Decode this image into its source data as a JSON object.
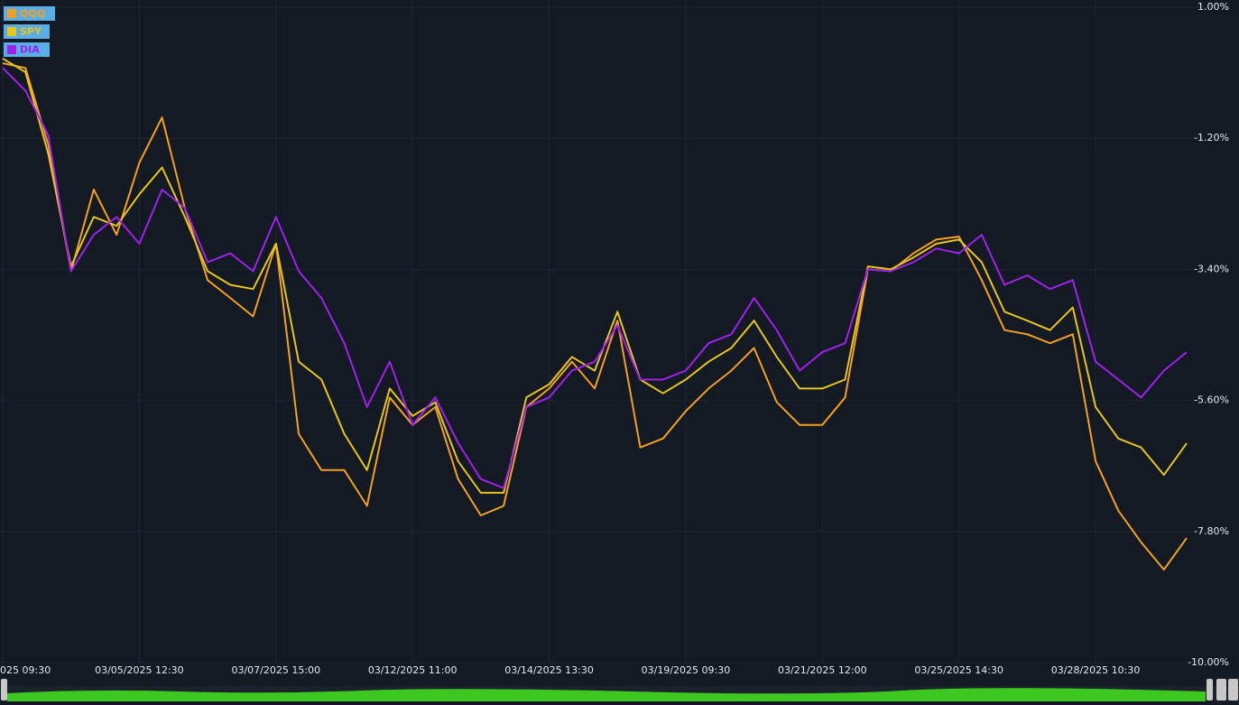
{
  "chart_data": {
    "type": "line",
    "categories": [
      "025 09:30",
      null,
      null,
      null,
      null,
      null,
      "03/05/2025 12:30",
      null,
      null,
      null,
      null,
      null,
      "03/07/2025 15:00",
      null,
      null,
      null,
      null,
      null,
      "03/12/2025 11:00",
      null,
      null,
      null,
      null,
      null,
      "03/14/2025 13:30",
      null,
      null,
      null,
      null,
      null,
      "03/19/2025 09:30",
      null,
      null,
      null,
      null,
      null,
      "03/21/2025 12:00",
      null,
      null,
      null,
      null,
      null,
      "03/25/2025 14:30",
      null,
      null,
      null,
      null,
      null,
      "03/28/2025 10:30",
      null,
      null,
      null,
      null
    ],
    "series": [
      {
        "name": "QQQ",
        "color": "#f5a020",
        "values": [
          0.06,
          -0.02,
          -1.31,
          -3.43,
          -2.06,
          -2.82,
          -1.61,
          -0.85,
          -2.37,
          -3.58,
          -3.88,
          -4.19,
          -2.97,
          -6.16,
          -6.77,
          -6.77,
          -7.37,
          -5.55,
          -6.01,
          -5.71,
          -6.92,
          -7.53,
          -7.37,
          -5.71,
          -5.4,
          -4.95,
          -5.4,
          -4.26,
          -6.39,
          -6.24,
          -5.78,
          -5.4,
          -5.1,
          -4.72,
          -5.63,
          -6.01,
          -6.01,
          -5.55,
          -3.4,
          -3.43,
          -3.13,
          -2.9,
          -2.85,
          -3.58,
          -4.42,
          -4.49,
          -4.64,
          -4.49,
          -6.62,
          -7.45,
          -7.98,
          -8.44,
          -7.91
        ]
      },
      {
        "name": "SPY",
        "color": "#e8c51c",
        "values": [
          0.14,
          -0.09,
          -1.46,
          -3.35,
          -2.52,
          -2.67,
          -2.14,
          -1.69,
          -2.52,
          -3.43,
          -3.66,
          -3.73,
          -2.97,
          -4.95,
          -5.25,
          -6.16,
          -6.77,
          -5.4,
          -5.86,
          -5.63,
          -6.62,
          -7.15,
          -7.15,
          -5.55,
          -5.33,
          -4.87,
          -5.1,
          -4.11,
          -5.25,
          -5.48,
          -5.25,
          -4.95,
          -4.72,
          -4.26,
          -4.87,
          -5.4,
          -5.4,
          -5.25,
          -3.35,
          -3.4,
          -3.2,
          -2.97,
          -2.9,
          -3.28,
          -4.11,
          -4.26,
          -4.42,
          -4.04,
          -5.71,
          -6.24,
          -6.39,
          -6.85,
          -6.32
        ]
      },
      {
        "name": "DIA",
        "color": "#a020f0",
        "values": [
          -0.02,
          -0.4,
          -1.15,
          -3.43,
          -2.82,
          -2.52,
          -2.97,
          -2.06,
          -2.37,
          -3.28,
          -3.13,
          -3.43,
          -2.52,
          -3.43,
          -3.88,
          -4.64,
          -5.71,
          -4.95,
          -6.01,
          -5.55,
          -6.31,
          -6.92,
          -7.07,
          -5.71,
          -5.55,
          -5.1,
          -4.95,
          -4.34,
          -5.25,
          -5.25,
          -5.1,
          -4.64,
          -4.49,
          -3.88,
          -4.42,
          -5.1,
          -4.79,
          -4.64,
          -3.4,
          -3.43,
          -3.28,
          -3.05,
          -3.13,
          -2.82,
          -3.66,
          -3.5,
          -3.73,
          -3.58,
          -4.95,
          -5.25,
          -5.55,
          -5.1,
          -4.79
        ]
      }
    ],
    "ylim": [
      -10,
      1
    ],
    "yticks": [
      {
        "value": 1,
        "label": "1.00%"
      },
      {
        "value": -1.2,
        "label": "-1.20%"
      },
      {
        "value": -3.4,
        "label": "-3.40%"
      },
      {
        "value": -5.6,
        "label": "-5.60%"
      },
      {
        "value": -7.8,
        "label": "-7.80%"
      },
      {
        "value": -10,
        "label": "-10.00%"
      }
    ],
    "grid": true,
    "legend": "upper left"
  }
}
